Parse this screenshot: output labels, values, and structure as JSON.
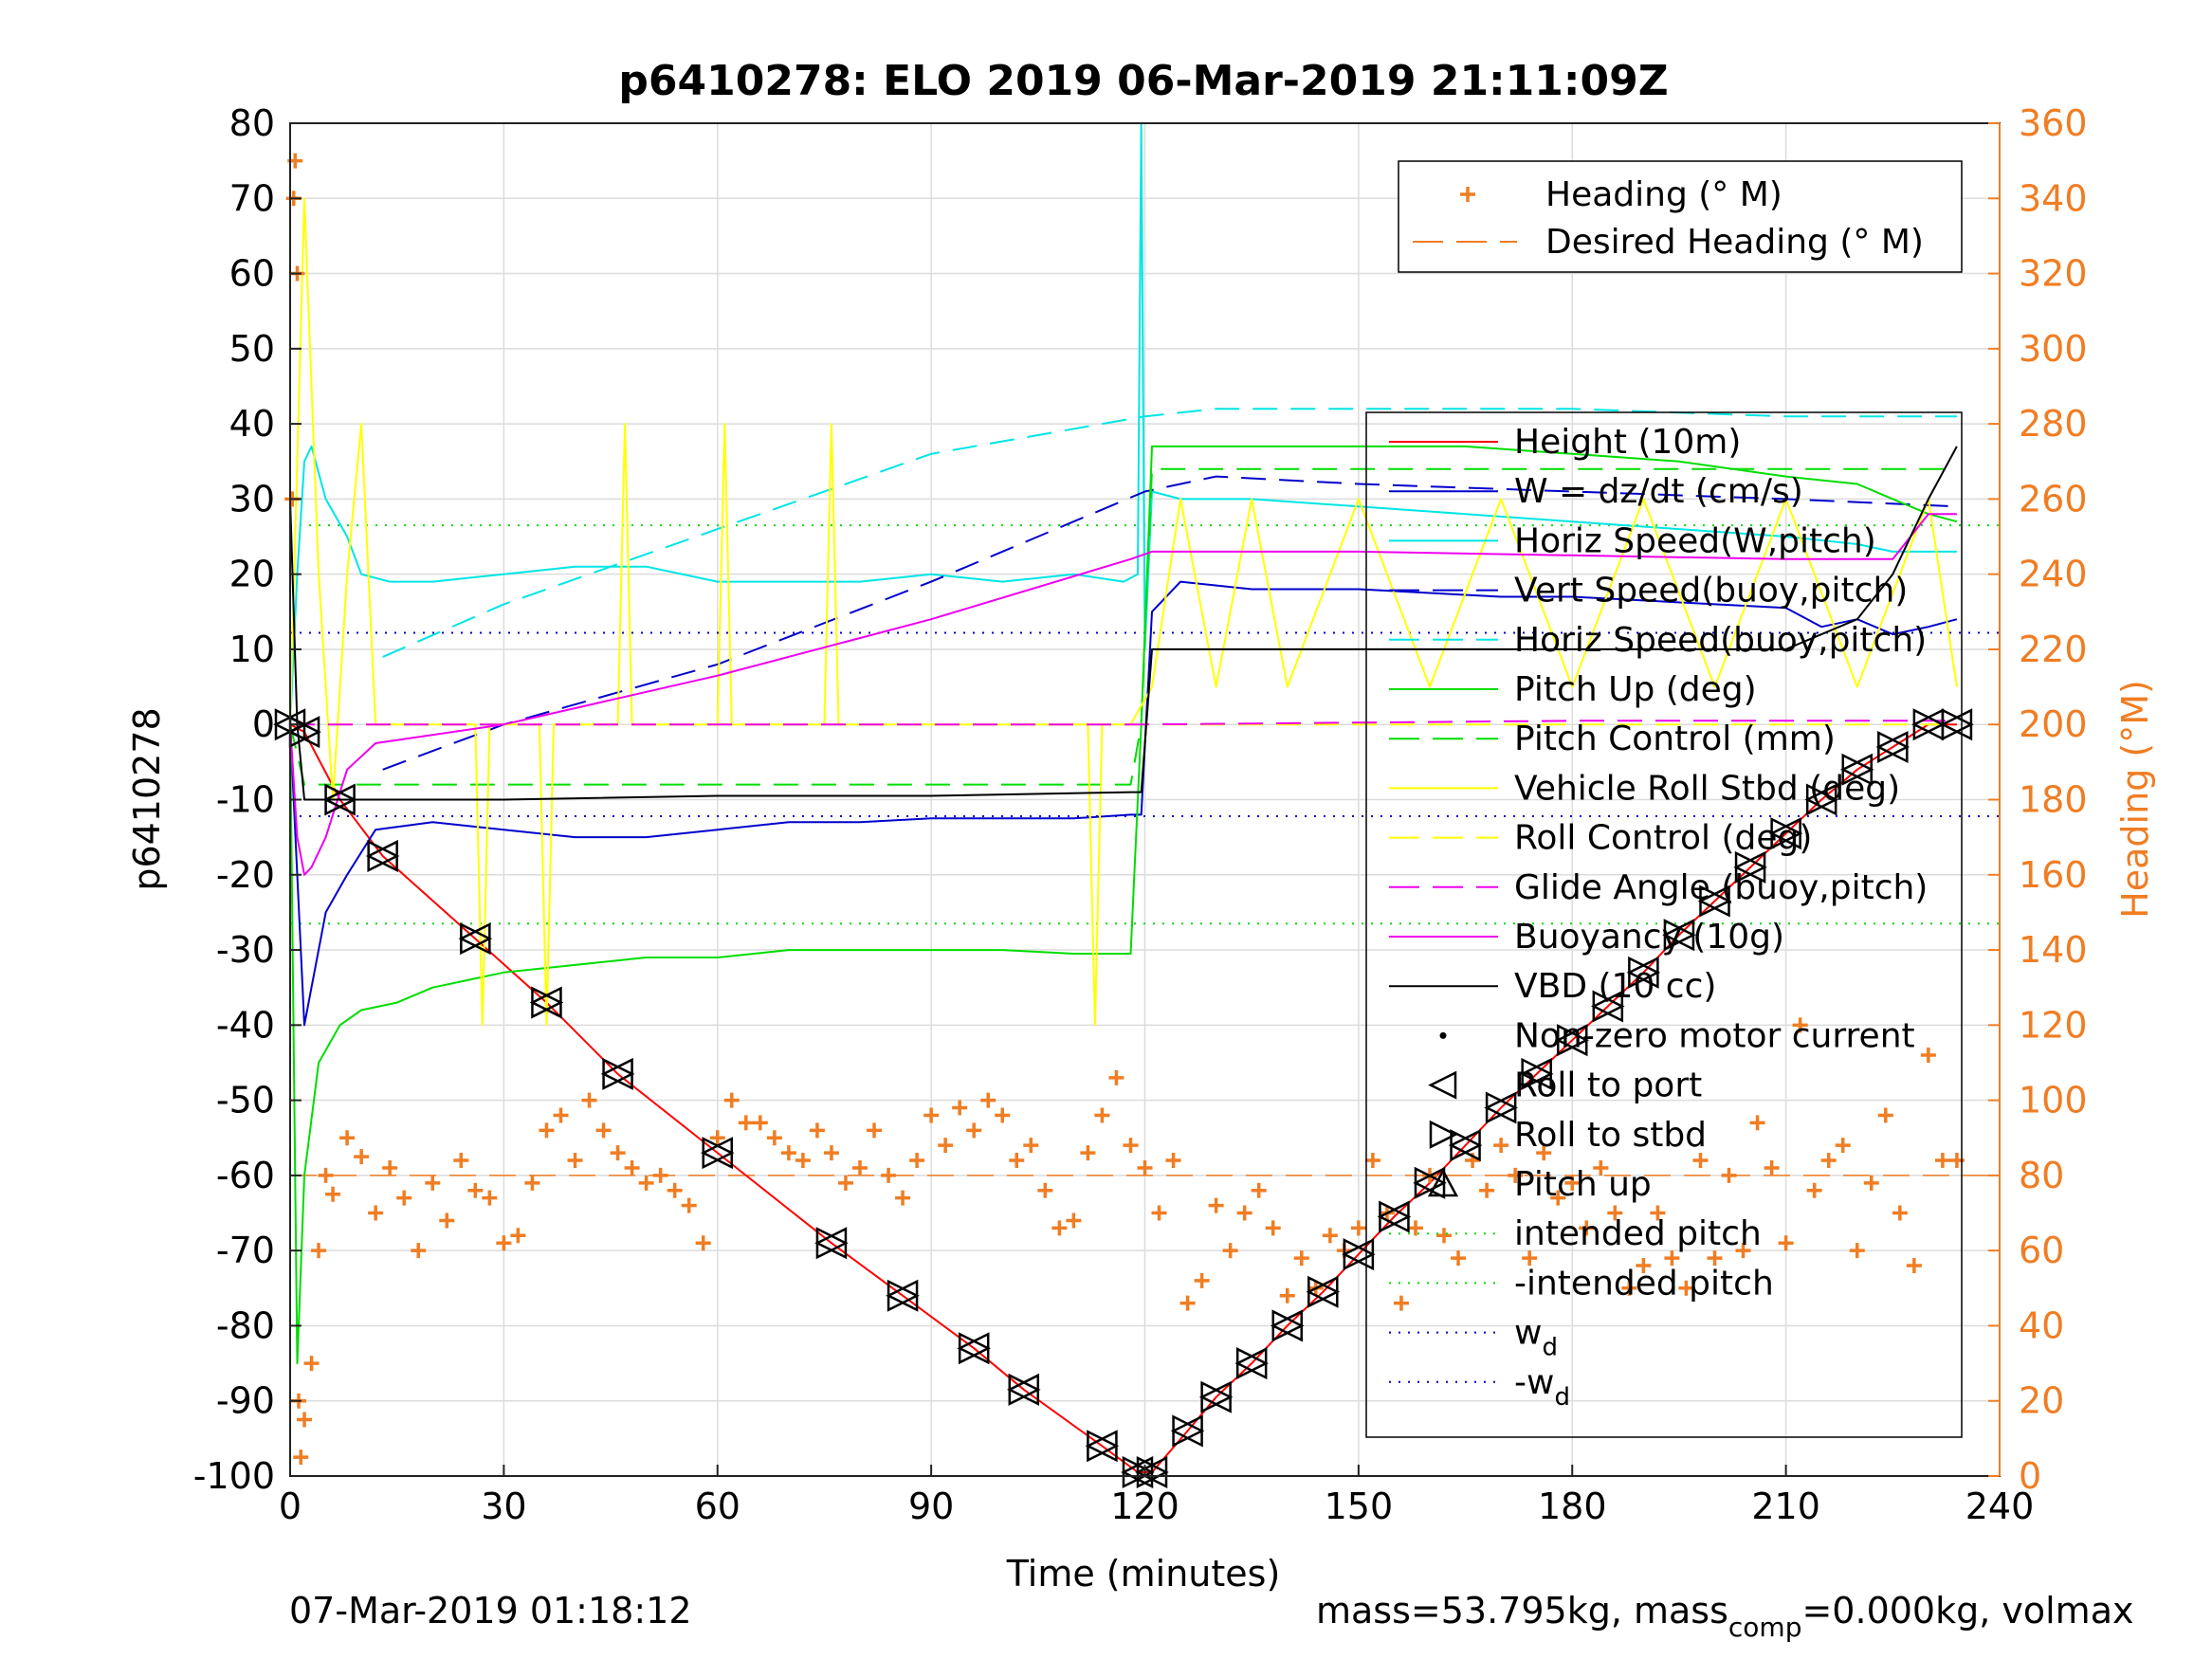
{
  "chart_data": {
    "type": "line",
    "title": "p6410278: ELO 2019 06-Mar-2019 21:11:09Z",
    "xlabel": "Time (minutes)",
    "ylabel": "p6410278",
    "ylabel_right": "Heading (°M)",
    "xlim": [
      0,
      240
    ],
    "ylim": [
      -100,
      80
    ],
    "ylim_right": [
      0,
      360
    ],
    "x_ticks": [
      "0",
      "30",
      "60",
      "90",
      "120",
      "150",
      "180",
      "210",
      "240"
    ],
    "y_ticks": [
      "80",
      "70",
      "60",
      "50",
      "40",
      "30",
      "20",
      "10",
      "0",
      "-10",
      "-20",
      "-30",
      "-40",
      "-50",
      "-60",
      "-70",
      "-80",
      "-90",
      "-100"
    ],
    "y_ticks_right": [
      "360",
      "340",
      "320",
      "300",
      "280",
      "260",
      "240",
      "220",
      "200",
      "180",
      "160",
      "140",
      "120",
      "100",
      "80",
      "60",
      "40",
      "20",
      "0"
    ],
    "grid": true,
    "footer_left": "07-Mar-2019 01:18:12",
    "footer_right": "mass=53.795kg, mass_comp=0.000kg, volmax",
    "legend_top": [
      {
        "label": "Heading (° M)",
        "color": "#f07d23",
        "style": "plus"
      },
      {
        "label": "Desired Heading (° M)",
        "color": "#f07d23",
        "style": "dashed"
      }
    ],
    "legend_main": [
      {
        "label": "Height (10m)",
        "color": "#ff0000",
        "style": "solid"
      },
      {
        "label": "W = dz/dt (cm/s)",
        "color": "#0000cc",
        "style": "solid"
      },
      {
        "label": "Horiz Speed(W,pitch)",
        "color": "#00e5e5",
        "style": "solid"
      },
      {
        "label": "Vert Speed(buoy,pitch)",
        "color": "#0000cc",
        "style": "dashed"
      },
      {
        "label": "Horiz Speed(buoy,pitch)",
        "color": "#00e5e5",
        "style": "dashed"
      },
      {
        "label": "Pitch Up (deg)",
        "color": "#00dd00",
        "style": "solid"
      },
      {
        "label": "Pitch Control (mm)",
        "color": "#00dd00",
        "style": "dashed"
      },
      {
        "label": "Vehicle Roll Stbd (deg)",
        "color": "#ffff00",
        "style": "solid"
      },
      {
        "label": "Roll Control (deg)",
        "color": "#ffff00",
        "style": "dashed"
      },
      {
        "label": "Glide Angle (buoy,pitch)",
        "color": "#ee00ee",
        "style": "dashed"
      },
      {
        "label": "Buoyancy (10g)",
        "color": "#ee00ee",
        "style": "solid"
      },
      {
        "label": "VBD (10 cc)",
        "color": "#000000",
        "style": "solid"
      },
      {
        "label": "Non-zero motor current",
        "color": "#000000",
        "style": "dot"
      },
      {
        "label": "Roll to port",
        "color": "#000000",
        "style": "tri-left"
      },
      {
        "label": "Roll to stbd",
        "color": "#000000",
        "style": "tri-right"
      },
      {
        "label": "Pitch up",
        "color": "#000000",
        "style": "tri-up"
      },
      {
        "label": "intended pitch",
        "color": "#00dd00",
        "style": "dotted"
      },
      {
        "label": "-intended pitch",
        "color": "#00dd00",
        "style": "dotted"
      },
      {
        "label": "w_d",
        "color": "#0000cc",
        "style": "dotted"
      },
      {
        "label": "-w_d",
        "color": "#0000cc",
        "style": "dotted"
      }
    ],
    "reference_lines": {
      "intended_pitch": 26.5,
      "neg_intended_pitch": -26.5,
      "w_d": 12.2,
      "neg_w_d": -12.2,
      "desired_heading_deg": 80
    },
    "series": [
      {
        "name": "Height (10m)",
        "color": "#ff0000",
        "x": [
          0,
          2,
          7,
          13,
          26,
          36,
          46,
          60,
          76,
          86,
          96,
          103,
          114,
          119,
          121,
          126,
          130,
          135,
          140,
          145,
          150,
          155,
          160,
          165,
          170,
          175,
          180,
          185,
          190,
          195,
          200,
          205,
          210,
          215,
          220,
          225,
          230,
          234
        ],
        "y": [
          0,
          -1,
          -10,
          -17.5,
          -28.5,
          -37,
          -46.5,
          -57,
          -69,
          -76,
          -83,
          -88.5,
          -96,
          -99.5,
          -99.5,
          -94,
          -89.5,
          -85,
          -80,
          -75.5,
          -70.5,
          -65.5,
          -61,
          -56,
          -51,
          -46.5,
          -42,
          -37.5,
          -33,
          -28,
          -23.5,
          -19,
          -14.5,
          -10,
          -6,
          -3,
          0,
          0
        ]
      },
      {
        "name": "W = dz/dt (cm/s)",
        "color": "#0000cc",
        "x": [
          0,
          1,
          2,
          3,
          5,
          8,
          12,
          20,
          30,
          40,
          50,
          60,
          70,
          80,
          90,
          100,
          110,
          118,
          119.5,
          121,
          125,
          135,
          150,
          160,
          170,
          180,
          190,
          200,
          210,
          215,
          220,
          225,
          230,
          234
        ],
        "y": [
          0,
          -20,
          -40,
          -35,
          -25,
          -20,
          -14,
          -13,
          -14,
          -15,
          -15,
          -14,
          -13,
          -13,
          -12.5,
          -12.5,
          -12.5,
          -12,
          -12,
          15,
          19,
          18,
          18,
          17.5,
          17,
          17,
          16.5,
          16,
          15.5,
          13,
          14,
          12,
          13,
          14
        ]
      },
      {
        "name": "Horiz Speed(W,pitch)",
        "color": "#00e5e5",
        "x": [
          0,
          1,
          2,
          3,
          5,
          8,
          10,
          14,
          20,
          30,
          40,
          50,
          60,
          70,
          80,
          90,
          100,
          110,
          117,
          119,
          119.5,
          120,
          121,
          125,
          135,
          150,
          165,
          180,
          195,
          210,
          220,
          225,
          230,
          234
        ],
        "y": [
          0,
          20,
          35,
          37,
          30,
          25,
          20,
          19,
          19,
          20,
          21,
          21,
          19,
          19,
          19,
          20,
          19,
          20,
          19,
          20,
          80,
          10,
          31,
          30,
          30,
          29,
          28,
          27,
          26,
          25,
          24,
          23,
          23,
          23
        ]
      },
      {
        "name": "Vert Speed(buoy,pitch)",
        "color": "#0000cc",
        "dashed": true,
        "x": [
          13,
          30,
          60,
          90,
          120,
          130,
          150,
          180,
          210,
          234
        ],
        "y": [
          -6,
          0,
          8,
          19,
          31,
          33,
          32,
          31,
          30,
          29
        ]
      },
      {
        "name": "Horiz Speed(buoy,pitch)",
        "color": "#00e5e5",
        "dashed": true,
        "x": [
          13,
          30,
          60,
          90,
          120,
          130,
          150,
          180,
          210,
          234
        ],
        "y": [
          9,
          16,
          26,
          36,
          41,
          42,
          42,
          42,
          41,
          41
        ]
      },
      {
        "name": "Pitch Up (deg)",
        "color": "#00dd00",
        "x": [
          0,
          1,
          2,
          4,
          7,
          10,
          15,
          20,
          30,
          40,
          50,
          60,
          70,
          80,
          90,
          100,
          110,
          118,
          119.5,
          121,
          125,
          135,
          150,
          165,
          180,
          195,
          210,
          220,
          225,
          230,
          234
        ],
        "y": [
          0,
          -85,
          -60,
          -45,
          -40,
          -38,
          -37,
          -35,
          -33,
          -32,
          -31,
          -31,
          -30,
          -30,
          -30,
          -30,
          -30.5,
          -30.5,
          0,
          37,
          37,
          37,
          37,
          37,
          36,
          35,
          33,
          32,
          30,
          28,
          27
        ]
      },
      {
        "name": "Pitch Control (mm)",
        "color": "#00dd00",
        "dashed": true,
        "x": [
          0,
          2,
          4,
          10,
          30,
          60,
          90,
          118,
          119.5,
          121,
          150,
          180,
          210,
          234
        ],
        "y": [
          0,
          -8,
          -8,
          -8,
          -8,
          -8,
          -8,
          -8,
          0,
          34,
          34,
          34,
          34,
          34
        ]
      },
      {
        "name": "Vehicle Roll Stbd (deg)",
        "color": "#ffff00",
        "x": [
          0,
          2,
          4,
          6,
          8,
          10,
          12,
          20,
          26,
          27,
          28,
          35,
          36,
          37,
          46,
          47,
          48,
          60,
          61,
          62,
          75,
          76,
          77,
          90,
          100,
          112,
          113,
          114,
          118,
          121,
          125,
          130,
          135,
          140,
          150,
          160,
          170,
          180,
          190,
          200,
          210,
          220,
          230,
          234
        ],
        "y": [
          0,
          70,
          20,
          -10,
          20,
          40,
          0,
          0,
          0,
          -40,
          0,
          0,
          -40,
          0,
          0,
          40,
          0,
          0,
          40,
          0,
          0,
          40,
          0,
          0,
          0,
          0,
          -40,
          0,
          0,
          5,
          30,
          5,
          30,
          5,
          30,
          5,
          30,
          5,
          30,
          5,
          30,
          5,
          30,
          5
        ]
      },
      {
        "name": "Roll Control (deg)",
        "color": "#ffff00",
        "dashed": true,
        "x": [
          0,
          2,
          120,
          234
        ],
        "y": [
          0,
          0,
          0,
          0
        ]
      },
      {
        "name": "Glide Angle (buoy,pitch)",
        "color": "#ee00ee",
        "dashed": true,
        "x": [
          0,
          2,
          60,
          120,
          180,
          234
        ],
        "y": [
          0,
          0,
          0,
          0,
          0.5,
          0.5
        ]
      },
      {
        "name": "Buoyancy (10g)",
        "color": "#ee00ee",
        "x": [
          0,
          1,
          2,
          3,
          5,
          8,
          12,
          30,
          60,
          90,
          118,
          121,
          150,
          180,
          210,
          225,
          230,
          234
        ],
        "y": [
          0,
          -15,
          -20,
          -19,
          -15,
          -6,
          -2.5,
          0,
          6.5,
          14,
          22,
          23,
          23,
          22.5,
          22,
          22,
          28,
          28
        ]
      },
      {
        "name": "VBD (10 cc)",
        "color": "#000000",
        "x": [
          0,
          1,
          2,
          4,
          8,
          15,
          30,
          60,
          90,
          118,
          119.5,
          121,
          150,
          180,
          210,
          220,
          225,
          230,
          234
        ],
        "y": [
          30,
          0,
          -10,
          -10,
          -10,
          -10,
          -10,
          -9.5,
          -9.5,
          -9,
          -9,
          10,
          10,
          10,
          10,
          14,
          20,
          30,
          37
        ]
      }
    ],
    "heading_points": {
      "x": [
        0.3,
        0.5,
        0.7,
        1.0,
        1.2,
        1.5,
        2.0,
        3.0,
        4.0,
        5.0,
        6.0,
        8.0,
        10.0,
        12.0,
        14.0,
        16.0,
        18.0,
        20.0,
        22.0,
        24.0,
        26.0,
        28.0,
        30.0,
        32.0,
        34.0,
        36.0,
        38.0,
        40.0,
        42.0,
        44.0,
        46.0,
        48.0,
        50.0,
        52.0,
        54.0,
        56.0,
        58.0,
        60.0,
        62.0,
        64.0,
        66.0,
        68.0,
        70.0,
        72.0,
        74.0,
        76.0,
        78.0,
        80.0,
        82.0,
        84.0,
        86.0,
        88.0,
        90.0,
        92.0,
        94.0,
        96.0,
        98.0,
        100.0,
        102.0,
        104.0,
        106.0,
        108.0,
        110.0,
        112.0,
        114.0,
        116.0,
        118.0,
        120.0,
        122.0,
        124.0,
        126.0,
        128.0,
        130.0,
        132.0,
        134.0,
        136.0,
        138.0,
        140.0,
        142.0,
        144.0,
        146.0,
        148.0,
        150.0,
        152.0,
        154.0,
        156.0,
        158.0,
        160.0,
        162.0,
        164.0,
        166.0,
        168.0,
        170.0,
        172.0,
        174.0,
        176.0,
        178.0,
        180.0,
        182.0,
        184.0,
        186.0,
        188.0,
        190.0,
        192.0,
        194.0,
        196.0,
        198.0,
        200.0,
        202.0,
        204.0,
        206.0,
        208.0,
        210.0,
        212.0,
        214.0,
        216.0,
        218.0,
        220.0,
        222.0,
        224.0,
        226.0,
        228.0,
        230.0,
        232.0,
        234.0
      ],
      "y": [
        260,
        340,
        350,
        320,
        20,
        5,
        15,
        30,
        60,
        80,
        75,
        90,
        85,
        70,
        82,
        74,
        60,
        78,
        68,
        84,
        76,
        74,
        62,
        64,
        78,
        92,
        96,
        84,
        100,
        92,
        86,
        82,
        78,
        80,
        76,
        72,
        62,
        90,
        100,
        94,
        94,
        90,
        86,
        84,
        92,
        86,
        78,
        82,
        92,
        80,
        74,
        84,
        96,
        88,
        98,
        92,
        100,
        96,
        84,
        88,
        76,
        66,
        68,
        86,
        96,
        106,
        88,
        82,
        70,
        84,
        46,
        52,
        72,
        60,
        70,
        76,
        66,
        48,
        58,
        50,
        64,
        60,
        66,
        84,
        70,
        46,
        66,
        80,
        64,
        58,
        84,
        76,
        88,
        80,
        58,
        86,
        74,
        78,
        66,
        82,
        70,
        50,
        56,
        70,
        58,
        50,
        84,
        58,
        80,
        60,
        94,
        82,
        62,
        120,
        76,
        84,
        88,
        60,
        78,
        96,
        70,
        56,
        112,
        84,
        84
      ]
    }
  }
}
